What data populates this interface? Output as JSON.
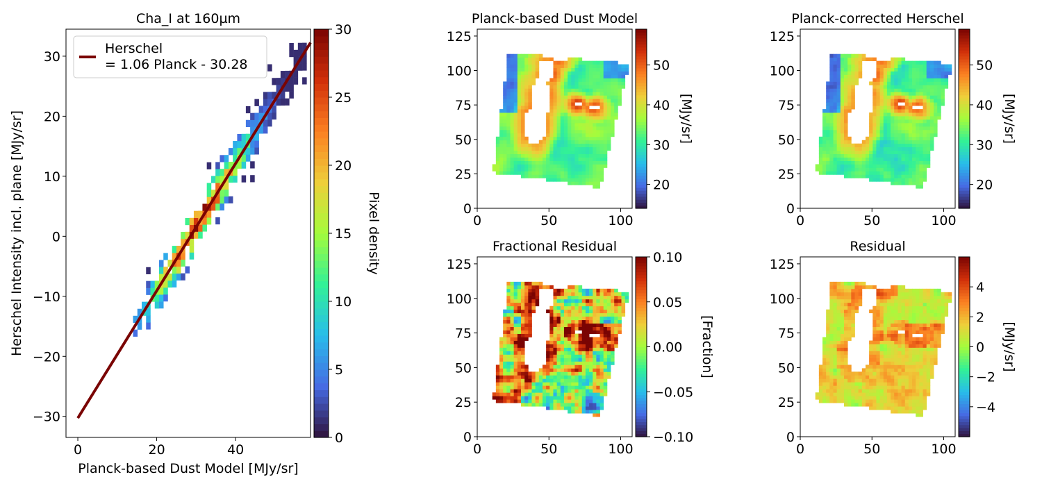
{
  "colors": {
    "fit_line": "#7a0403",
    "colormap": "turbo",
    "background": "#ffffff"
  },
  "chart_data": [
    {
      "id": "scatter",
      "type": "heatmap",
      "title": "Cha_I at 160µm",
      "xlabel": "Planck-based Dust Model [MJy/sr]",
      "ylabel": "Herschel Intensity incl. plane [MJy/sr]",
      "xlim": [
        -3,
        59
      ],
      "ylim": [
        -33.5,
        34.5
      ],
      "xticks": [
        0,
        20,
        40
      ],
      "yticks": [
        -30,
        -20,
        -10,
        0,
        10,
        20,
        30
      ],
      "xtick_labels": [
        "0",
        "20",
        "40"
      ],
      "ytick_labels": [
        "−30",
        "−20",
        "−10",
        "0",
        "10",
        "20",
        "30"
      ],
      "density_range": [
        0,
        30
      ],
      "fit": {
        "slope": 1.06,
        "intercept": -30.28,
        "x_range": [
          0,
          59
        ]
      },
      "legend": {
        "position": "top-left",
        "label_line1": "Herschel",
        "label_line2": "= 1.06 Planck - 30.28"
      },
      "colorbar": {
        "label": "Pixel density",
        "range": [
          0,
          30
        ],
        "ticks": [
          0,
          5,
          10,
          15,
          20,
          25,
          30
        ],
        "tick_labels": [
          "0",
          "5",
          "10",
          "15",
          "20",
          "25",
          "30"
        ]
      }
    },
    {
      "id": "dust",
      "type": "heatmap",
      "title": "Planck-based Dust Model",
      "xlim": [
        0,
        108
      ],
      "ylim": [
        0,
        130
      ],
      "xticks": [
        0,
        50,
        100
      ],
      "yticks": [
        0,
        25,
        50,
        75,
        100,
        125
      ],
      "xtick_labels": [
        "0",
        "50",
        "100"
      ],
      "ytick_labels": [
        "0",
        "25",
        "50",
        "75",
        "100",
        "125"
      ],
      "colorbar": {
        "label": "[MJy/sr]",
        "range": [
          14,
          59
        ],
        "ticks": [
          20,
          30,
          40,
          50
        ],
        "tick_labels": [
          "20",
          "30",
          "40",
          "50"
        ]
      }
    },
    {
      "id": "corrected",
      "type": "heatmap",
      "title": "Planck-corrected Herschel",
      "xlim": [
        0,
        108
      ],
      "ylim": [
        0,
        130
      ],
      "xticks": [
        0,
        50,
        100
      ],
      "yticks": [
        0,
        25,
        50,
        75,
        100,
        125
      ],
      "xtick_labels": [
        "0",
        "50",
        "100"
      ],
      "ytick_labels": [
        "0",
        "25",
        "50",
        "75",
        "100",
        "125"
      ],
      "colorbar": {
        "label": "[MJy/sr]",
        "range": [
          14,
          59
        ],
        "ticks": [
          20,
          30,
          40,
          50
        ],
        "tick_labels": [
          "20",
          "30",
          "40",
          "50"
        ]
      }
    },
    {
      "id": "fracres",
      "type": "heatmap",
      "title": "Fractional Residual",
      "xlim": [
        0,
        108
      ],
      "ylim": [
        0,
        130
      ],
      "xticks": [
        0,
        50,
        100
      ],
      "yticks": [
        0,
        25,
        50,
        75,
        100,
        125
      ],
      "xtick_labels": [
        "0",
        "50",
        "100"
      ],
      "ytick_labels": [
        "0",
        "25",
        "50",
        "75",
        "100",
        "125"
      ],
      "colorbar": {
        "label": "[Fraction]",
        "range": [
          -0.1,
          0.1
        ],
        "ticks": [
          -0.1,
          -0.05,
          0,
          0.05,
          0.1
        ],
        "tick_labels": [
          "−0.10",
          "−0.05",
          "0.00",
          "0.05",
          "0.10"
        ]
      }
    },
    {
      "id": "residual",
      "type": "heatmap",
      "title": "Residual",
      "xlim": [
        0,
        108
      ],
      "ylim": [
        0,
        130
      ],
      "xticks": [
        0,
        50,
        100
      ],
      "yticks": [
        0,
        25,
        50,
        75,
        100,
        125
      ],
      "xtick_labels": [
        "0",
        "50",
        "100"
      ],
      "ytick_labels": [
        "0",
        "25",
        "50",
        "75",
        "100",
        "125"
      ],
      "colorbar": {
        "label": "[MJy/sr]",
        "range": [
          -6,
          6
        ],
        "ticks": [
          -4,
          -2,
          0,
          2,
          4
        ],
        "tick_labels": [
          "−4",
          "−2",
          "0",
          "2",
          "4"
        ]
      }
    }
  ]
}
